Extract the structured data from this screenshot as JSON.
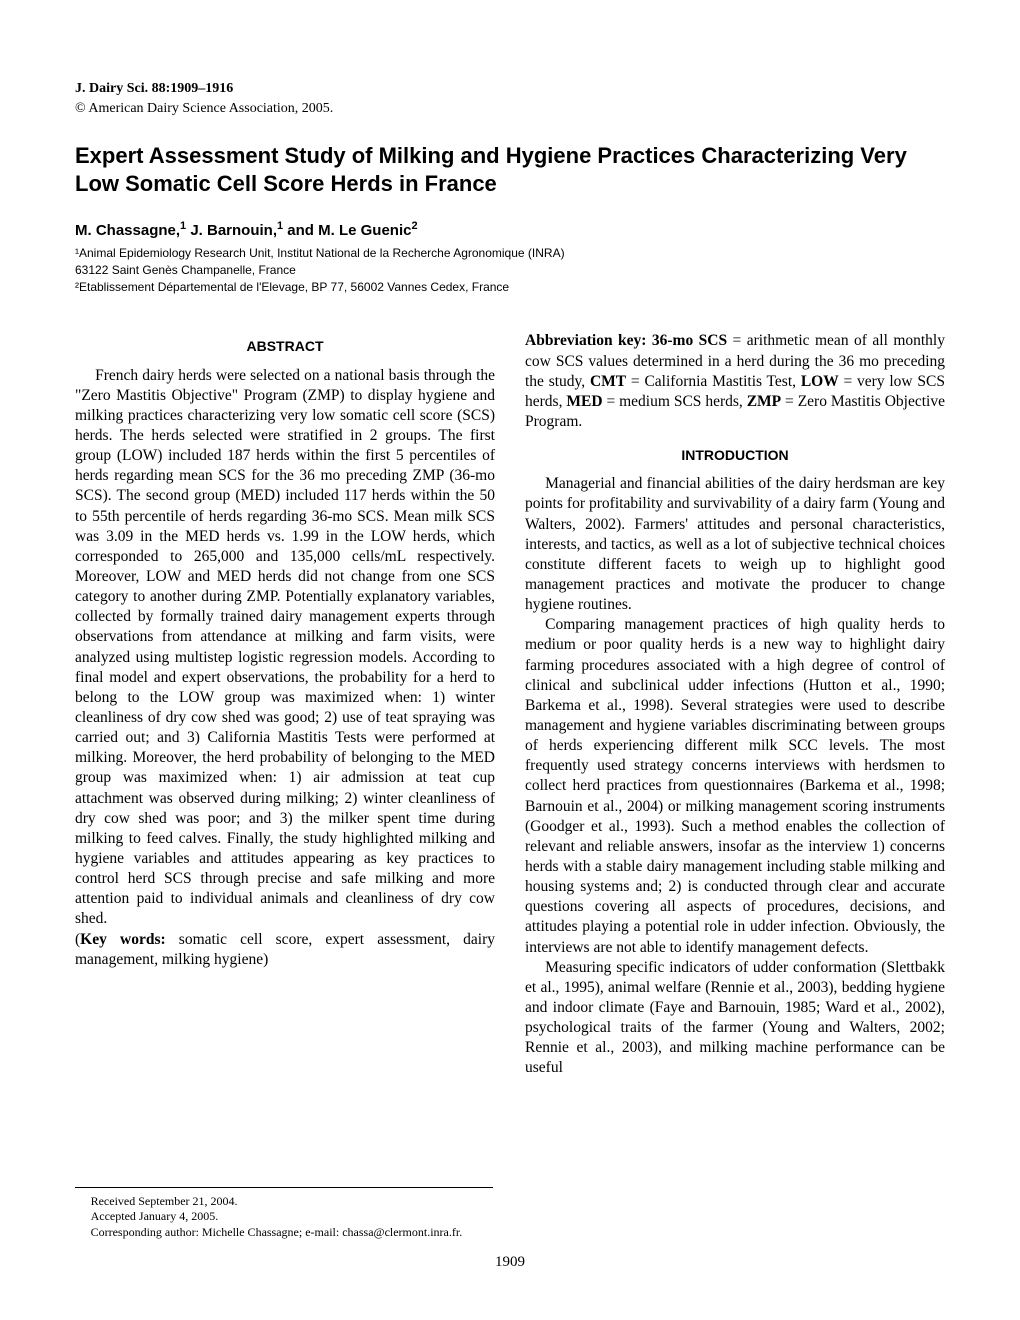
{
  "journal": "J. Dairy Sci. 88:1909–1916",
  "copyright": "© American Dairy Science Association, 2005.",
  "title": "Expert Assessment Study of Milking and Hygiene Practices Characterizing Very Low Somatic Cell Score Herds in France",
  "authors": "M. Chassagne,¹ J. Barnouin,¹ and M. Le Guenic²",
  "affiliations": [
    "¹Animal Epidemiology Research Unit, Institut National de la Recherche Agronomique (INRA)",
    "63122 Saint Genès Champanelle, France",
    "²Etablissement Départemental de l'Elevage, BP 77, 56002 Vannes Cedex, France"
  ],
  "abstract_heading": "ABSTRACT",
  "abstract_text": "French dairy herds were selected on a national basis through the \"Zero Mastitis Objective\" Program (ZMP) to display hygiene and milking practices characterizing very low somatic cell score (SCS) herds. The herds selected were stratified in 2 groups. The first group (LOW) included 187 herds within the first 5 percentiles of herds regarding mean SCS for the 36 mo preceding ZMP (36-mo SCS). The second group (MED) included 117 herds within the 50 to 55th percentile of herds regarding 36-mo SCS. Mean milk SCS was 3.09 in the MED herds vs. 1.99 in the LOW herds, which corresponded to 265,000 and 135,000 cells/mL respectively. Moreover, LOW and MED herds did not change from one SCS category to another during ZMP. Potentially explanatory variables, collected by formally trained dairy management experts through observations from attendance at milking and farm visits, were analyzed using multistep logistic regression models. According to final model and expert observations, the probability for a herd to belong to the LOW group was maximized when: 1) winter cleanliness of dry cow shed was good; 2) use of teat spraying was carried out; and 3) California Mastitis Tests were performed at milking. Moreover, the herd probability of belonging to the MED group was maximized when: 1) air admission at teat cup attachment was observed during milking; 2) winter cleanliness of dry cow shed was poor; and 3) the milker spent time during milking to feed calves. Finally, the study highlighted milking and hygiene variables and attitudes appearing as key practices to control herd SCS through precise and safe milking and more attention paid to individual animals and cleanliness of dry cow shed.",
  "keywords_label": "(Key words:",
  "keywords_text": " somatic cell score, expert assessment, dairy management, milking hygiene)",
  "abbrev_label": "Abbreviation key: 36-mo SCS",
  "abbrev_text": " = arithmetic mean of all monthly cow SCS values determined in a herd during the 36 mo preceding the study, CMT = California Mastitis Test, LOW = very low SCS herds, MED = medium SCS herds, ZMP = Zero Mastitis Objective Program.",
  "introduction_heading": "INTRODUCTION",
  "intro_p1": "Managerial and financial abilities of the dairy herdsman are key points for profitability and survivability of a dairy farm (Young and Walters, 2002). Farmers' attitudes and personal characteristics, interests, and tactics, as well as a lot of subjective technical choices constitute different facets to weigh up to highlight good management practices and motivate the producer to change hygiene routines.",
  "intro_p2": "Comparing management practices of high quality herds to medium or poor quality herds is a new way to highlight dairy farming procedures associated with a high degree of control of clinical and subclinical udder infections (Hutton et al., 1990; Barkema et al., 1998). Several strategies were used to describe management and hygiene variables discriminating between groups of herds experiencing different milk SCC levels. The most frequently used strategy concerns interviews with herdsmen to collect herd practices from questionnaires (Barkema et al., 1998; Barnouin et al., 2004) or milking management scoring instruments (Goodger et al., 1993). Such a method enables the collection of relevant and reliable answers, insofar as the interview 1) concerns herds with a stable dairy management including stable milking and housing systems and; 2) is conducted through clear and accurate questions covering all aspects of procedures, decisions, and attitudes playing a potential role in udder infection. Obviously, the interviews are not able to identify management defects.",
  "intro_p3": "Measuring specific indicators of udder conformation (Slettbakk et al., 1995), animal welfare (Rennie et al., 2003), bedding hygiene and indoor climate (Faye and Barnouin, 1985; Ward et al., 2002), psychological traits of the farmer (Young and Walters, 2002; Rennie et al., 2003), and milking machine performance can be useful",
  "footnotes": {
    "received": "Received September 21, 2004.",
    "accepted": "Accepted January 4, 2005.",
    "corresponding": "Corresponding author: Michelle Chassagne; e-mail: chassa@clermont.inra.fr."
  },
  "page_number": "1909"
}
